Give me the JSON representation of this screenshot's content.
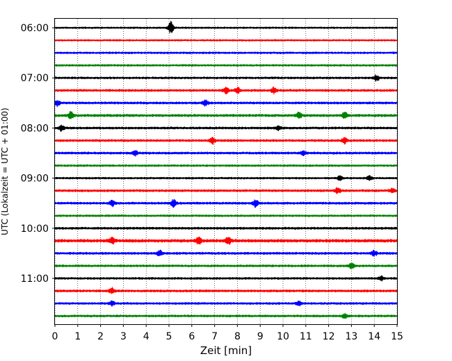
{
  "chart_data": {
    "type": "line",
    "title": "",
    "xlabel": "Zeit  [min]",
    "ylabel": "UTC (Lokalzeit = UTC + 01:00)",
    "xlim": [
      0,
      15
    ],
    "x_ticks": [
      "0",
      "1",
      "2",
      "3",
      "4",
      "5",
      "6",
      "7",
      "8",
      "9",
      "10",
      "11",
      "12",
      "13",
      "14",
      "15"
    ],
    "y_ticks": [
      {
        "label": "06:00",
        "trace": 0
      },
      {
        "label": "07:00",
        "trace": 4
      },
      {
        "label": "08:00",
        "trace": 8
      },
      {
        "label": "09:00",
        "trace": 12
      },
      {
        "label": "10:00",
        "trace": 16
      },
      {
        "label": "11:00",
        "trace": 20
      }
    ],
    "grid": "vertical dotted at each minute",
    "trace_interval_min": 15,
    "colors": [
      "#000000",
      "#ff0000",
      "#0000ff",
      "#008000"
    ],
    "traces": [
      {
        "start": "06:00",
        "color": "#000000",
        "level": 0.9,
        "events": [
          {
            "x": 5.08,
            "amp": 9
          }
        ]
      },
      {
        "start": "06:15",
        "color": "#ff0000",
        "level": 0.9,
        "events": []
      },
      {
        "start": "06:30",
        "color": "#0000ff",
        "level": 1.0,
        "events": []
      },
      {
        "start": "06:45",
        "color": "#008000",
        "level": 1.0,
        "events": []
      },
      {
        "start": "07:00",
        "color": "#000000",
        "level": 1.1,
        "events": [
          {
            "x": 14.1,
            "amp": 4
          }
        ]
      },
      {
        "start": "07:15",
        "color": "#ff0000",
        "level": 1.2,
        "events": [
          {
            "x": 7.5,
            "amp": 5
          },
          {
            "x": 8.0,
            "amp": 4
          },
          {
            "x": 9.6,
            "amp": 4
          }
        ]
      },
      {
        "start": "07:30",
        "color": "#0000ff",
        "level": 1.2,
        "events": [
          {
            "x": 0.1,
            "amp": 4
          },
          {
            "x": 6.6,
            "amp": 4
          }
        ]
      },
      {
        "start": "07:45",
        "color": "#008000",
        "level": 1.3,
        "events": [
          {
            "x": 0.7,
            "amp": 5
          },
          {
            "x": 10.7,
            "amp": 4
          },
          {
            "x": 12.7,
            "amp": 4
          }
        ]
      },
      {
        "start": "08:00",
        "color": "#000000",
        "level": 1.2,
        "events": [
          {
            "x": 0.3,
            "amp": 4
          },
          {
            "x": 9.8,
            "amp": 3
          }
        ]
      },
      {
        "start": "08:15",
        "color": "#ff0000",
        "level": 1.2,
        "events": [
          {
            "x": 6.9,
            "amp": 5
          },
          {
            "x": 12.7,
            "amp": 4
          }
        ]
      },
      {
        "start": "08:30",
        "color": "#0000ff",
        "level": 1.2,
        "events": [
          {
            "x": 3.5,
            "amp": 4
          },
          {
            "x": 10.9,
            "amp": 3
          }
        ]
      },
      {
        "start": "08:45",
        "color": "#008000",
        "level": 1.0,
        "events": []
      },
      {
        "start": "09:00",
        "color": "#000000",
        "level": 1.0,
        "events": [
          {
            "x": 12.5,
            "amp": 3
          },
          {
            "x": 13.8,
            "amp": 3
          }
        ]
      },
      {
        "start": "09:15",
        "color": "#ff0000",
        "level": 1.2,
        "events": [
          {
            "x": 12.4,
            "amp": 4
          },
          {
            "x": 14.8,
            "amp": 3
          }
        ]
      },
      {
        "start": "09:30",
        "color": "#0000ff",
        "level": 1.2,
        "events": [
          {
            "x": 2.5,
            "amp": 4
          },
          {
            "x": 5.2,
            "amp": 5
          },
          {
            "x": 8.8,
            "amp": 5
          }
        ]
      },
      {
        "start": "09:45",
        "color": "#008000",
        "level": 1.0,
        "events": []
      },
      {
        "start": "10:00",
        "color": "#000000",
        "level": 1.2,
        "events": []
      },
      {
        "start": "10:15",
        "color": "#ff0000",
        "level": 1.6,
        "events": [
          {
            "x": 2.5,
            "amp": 4
          },
          {
            "x": 6.3,
            "amp": 5
          },
          {
            "x": 7.6,
            "amp": 5
          }
        ]
      },
      {
        "start": "10:30",
        "color": "#0000ff",
        "level": 1.2,
        "events": [
          {
            "x": 4.6,
            "amp": 4
          },
          {
            "x": 14.0,
            "amp": 4
          }
        ]
      },
      {
        "start": "10:45",
        "color": "#008000",
        "level": 1.1,
        "events": [
          {
            "x": 13.0,
            "amp": 4
          }
        ]
      },
      {
        "start": "11:00",
        "color": "#000000",
        "level": 1.1,
        "events": [
          {
            "x": 14.3,
            "amp": 3
          }
        ]
      },
      {
        "start": "11:15",
        "color": "#ff0000",
        "level": 1.2,
        "events": [
          {
            "x": 2.5,
            "amp": 4
          }
        ]
      },
      {
        "start": "11:30",
        "color": "#0000ff",
        "level": 1.1,
        "events": [
          {
            "x": 2.5,
            "amp": 3
          },
          {
            "x": 10.7,
            "amp": 3
          }
        ]
      },
      {
        "start": "11:45",
        "color": "#008000",
        "level": 1.1,
        "events": [
          {
            "x": 12.7,
            "amp": 3
          }
        ]
      }
    ]
  }
}
